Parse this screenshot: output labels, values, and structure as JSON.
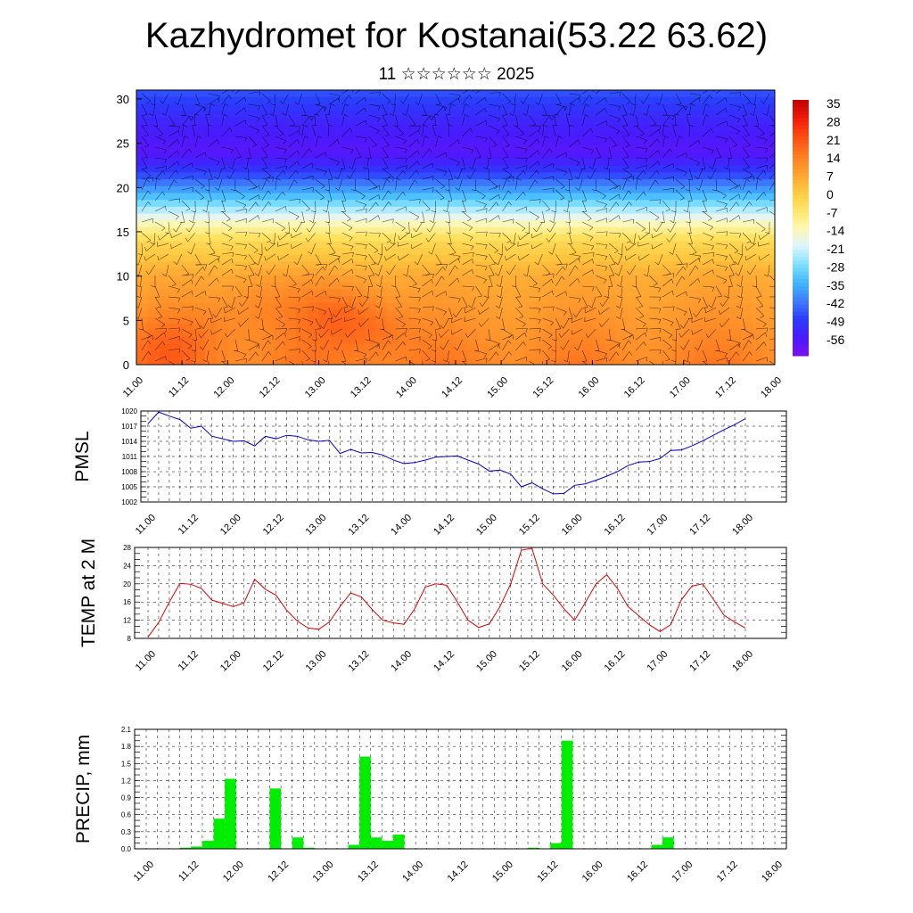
{
  "header": {
    "title": "Kazhydromet for Kostanai(53.22 63.62)",
    "subtitle": "11 ☆☆☆☆☆☆ 2025"
  },
  "chart_data": [
    {
      "type": "heatmap",
      "name": "vertical cross-section",
      "x_ticks": [
        "11.00",
        "11.12",
        "12.00",
        "12.12",
        "13.00",
        "13.12",
        "14.00",
        "14.12",
        "15.00",
        "15.12",
        "16.00",
        "16.12",
        "17.00",
        "17.12",
        "18.00"
      ],
      "y_ticks": [
        "0",
        "5",
        "10",
        "15",
        "20",
        "25",
        "30"
      ],
      "ylim": [
        0,
        31
      ],
      "colorbar_labels": [
        "35",
        "28",
        "21",
        "14",
        "7",
        "0",
        "-7",
        "-14",
        "-21",
        "-28",
        "-35",
        "-42",
        "-49",
        "-56"
      ],
      "colorbar_range": [
        -63,
        42
      ],
      "colormap": [
        "#7a10f0",
        "#4a1aff",
        "#2a3cff",
        "#3f7cff",
        "#40b8ff",
        "#7fe0ff",
        "#dff4ff",
        "#fff7b0",
        "#ffe566",
        "#ffc840",
        "#ffa030",
        "#ff7a20",
        "#ff4a10",
        "#f01a0a",
        "#c00000"
      ],
      "temperature_profile_levels": [
        0,
        5,
        10,
        14,
        16,
        18,
        20,
        22,
        24,
        27,
        31
      ],
      "temperature_profile_values": [
        18,
        14,
        10,
        0,
        -12,
        -25,
        -38,
        -50,
        -58,
        -54,
        -45
      ],
      "warm_spots": [
        {
          "day": 0.5,
          "level": 2,
          "delta": 5
        },
        {
          "day": 2.8,
          "level": 7,
          "delta": 4
        },
        {
          "day": 4.3,
          "level": 6,
          "delta": 7
        },
        {
          "day": 5.2,
          "level": 4,
          "delta": 6
        },
        {
          "day": 1.5,
          "level": 4,
          "delta": 3
        }
      ]
    },
    {
      "type": "line",
      "ylabel": "PMSL",
      "x_ticks": [
        "11.00",
        "11.12",
        "12.00",
        "12.12",
        "13.00",
        "13.12",
        "14.00",
        "14.12",
        "15.00",
        "15.12",
        "16.00",
        "16.12",
        "17.00",
        "17.12",
        "18.00"
      ],
      "y_ticks": [
        "1002",
        "1005",
        "1008",
        "1011",
        "1014",
        "1017",
        "1020"
      ],
      "ylim": [
        1002,
        1020
      ],
      "color": "#0000cc",
      "x_hours": [
        0,
        3,
        6,
        9,
        12,
        15,
        18,
        21,
        24,
        27,
        30,
        33,
        36,
        39,
        42,
        45,
        48,
        51,
        54,
        57,
        60,
        63,
        66,
        69,
        72,
        75,
        78,
        81,
        84,
        87,
        90,
        93,
        96,
        99,
        102,
        105,
        108,
        111,
        114,
        117,
        120,
        123,
        126,
        129,
        132,
        135,
        138,
        141,
        144,
        147,
        150,
        153,
        156,
        159,
        162,
        165,
        168
      ],
      "values": [
        1017.5,
        1019.8,
        1019.0,
        1018.3,
        1016.6,
        1017.0,
        1015.0,
        1014.5,
        1014.0,
        1014.1,
        1013.1,
        1015.0,
        1014.5,
        1015.2,
        1015.0,
        1014.3,
        1014.0,
        1014.2,
        1011.6,
        1012.4,
        1011.7,
        1011.8,
        1011.3,
        1010.3,
        1009.6,
        1009.8,
        1010.3,
        1010.9,
        1011.0,
        1011.1,
        1010.3,
        1009.5,
        1008.1,
        1008.3,
        1007.5,
        1005.0,
        1005.8,
        1004.6,
        1003.6,
        1003.7,
        1005.3,
        1005.6,
        1006.3,
        1007.1,
        1008.0,
        1009.2,
        1009.9,
        1010.0,
        1010.6,
        1012.2,
        1012.3,
        1013.1,
        1014.1,
        1015.2,
        1016.3,
        1017.3,
        1018.5
      ]
    },
    {
      "type": "line",
      "ylabel": "TEMP at 2 M",
      "x_ticks": [
        "11.00",
        "11.12",
        "12.00",
        "12.12",
        "13.00",
        "13.12",
        "14.00",
        "14.12",
        "15.00",
        "15.12",
        "16.00",
        "16.12",
        "17.00",
        "17.12",
        "18.00"
      ],
      "y_ticks": [
        "8",
        "12",
        "16",
        "20",
        "24",
        "28"
      ],
      "ylim": [
        8,
        28
      ],
      "color": "#dd0000",
      "x_hours": [
        0,
        3,
        6,
        9,
        12,
        15,
        18,
        21,
        24,
        27,
        30,
        33,
        36,
        39,
        42,
        45,
        48,
        51,
        54,
        57,
        60,
        63,
        66,
        69,
        72,
        75,
        78,
        81,
        84,
        87,
        90,
        93,
        96,
        99,
        102,
        105,
        108,
        111,
        114,
        117,
        120,
        123,
        126,
        129,
        132,
        135,
        138,
        141,
        144,
        147,
        150,
        153,
        156,
        159,
        162,
        165,
        168
      ],
      "values": [
        8.3,
        11.5,
        16.0,
        20.1,
        19.9,
        19.0,
        16.4,
        15.7,
        15.0,
        15.8,
        21.0,
        18.8,
        17.5,
        14.2,
        11.8,
        10.3,
        10.0,
        11.6,
        15.0,
        18.0,
        17.1,
        14.4,
        12.0,
        11.4,
        11.1,
        14.5,
        19.3,
        20.0,
        19.7,
        16.0,
        12.0,
        10.4,
        11.2,
        15.0,
        20.0,
        27.4,
        27.8,
        20.0,
        17.5,
        14.5,
        12.0,
        15.9,
        20.0,
        22.0,
        19.0,
        15.0,
        13.0,
        11.0,
        9.5,
        11.0,
        16.5,
        19.5,
        20.0,
        16.6,
        13.1,
        11.6,
        10.3
      ]
    },
    {
      "type": "bar",
      "ylabel": "PRECIP, mm",
      "x_ticks": [
        "11.00",
        "11.12",
        "12.00",
        "12.12",
        "13.00",
        "13.12",
        "14.00",
        "14.12",
        "15.00",
        "15.12",
        "16.00",
        "16.12",
        "17.00",
        "17.12",
        "18.00"
      ],
      "y_ticks": [
        "0.0",
        "0.3",
        "0.6",
        "0.9",
        "1.2",
        "1.5",
        "1.8",
        "2.1"
      ],
      "ylim": [
        0,
        2.1
      ],
      "color": "#00ee00",
      "x_hours": [
        12,
        15,
        18,
        21,
        24,
        36,
        42,
        45,
        57,
        60,
        63,
        66,
        69,
        105,
        111,
        114,
        138,
        141
      ],
      "values": [
        0.02,
        0.04,
        0.14,
        0.53,
        1.23,
        1.06,
        0.2,
        0.02,
        0.07,
        1.62,
        0.2,
        0.14,
        0.25,
        0.02,
        0.1,
        1.9,
        0.07,
        0.2
      ]
    }
  ]
}
